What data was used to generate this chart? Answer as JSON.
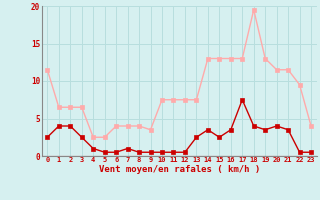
{
  "hours": [
    0,
    1,
    2,
    3,
    4,
    5,
    6,
    7,
    8,
    9,
    10,
    11,
    12,
    13,
    14,
    15,
    16,
    17,
    18,
    19,
    20,
    21,
    22,
    23
  ],
  "wind_avg": [
    2.5,
    4.0,
    4.0,
    2.5,
    1.0,
    0.5,
    0.5,
    1.0,
    0.5,
    0.5,
    0.5,
    0.5,
    0.5,
    2.5,
    3.5,
    2.5,
    3.5,
    7.5,
    4.0,
    3.5,
    4.0,
    3.5,
    0.5,
    0.5
  ],
  "wind_gust": [
    11.5,
    6.5,
    6.5,
    6.5,
    2.5,
    2.5,
    4.0,
    4.0,
    4.0,
    3.5,
    7.5,
    7.5,
    7.5,
    7.5,
    13.0,
    13.0,
    13.0,
    13.0,
    19.5,
    13.0,
    11.5,
    11.5,
    9.5,
    4.0
  ],
  "wind_avg_color": "#cc0000",
  "wind_gust_color": "#ffaaaa",
  "bg_color": "#d6f0f0",
  "grid_color": "#b8dede",
  "axis_color": "#cc0000",
  "spine_color": "#888888",
  "xlabel": "Vent moyen/en rafales ( km/h )",
  "ylim": [
    0,
    20
  ],
  "yticks": [
    0,
    5,
    10,
    15,
    20
  ],
  "marker_size": 2.5,
  "linewidth": 1.0
}
